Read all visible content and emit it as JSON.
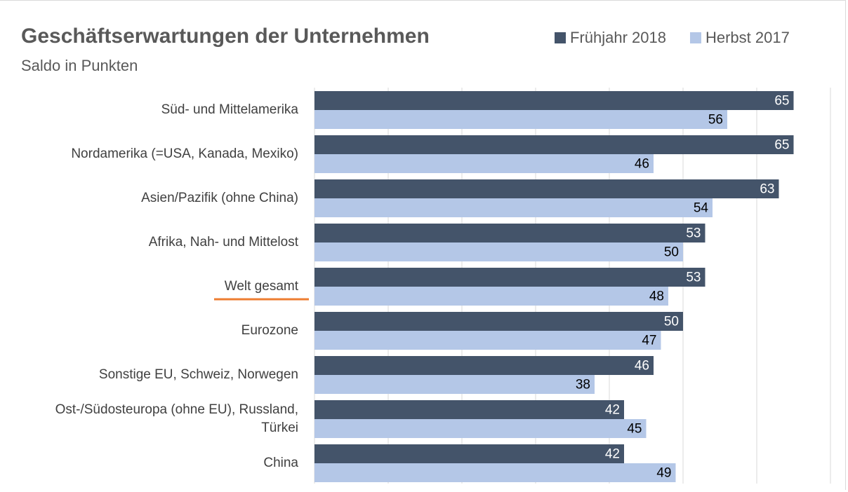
{
  "chart_data": {
    "type": "barh",
    "title": "Geschäftserwartungen der Unternehmen",
    "subtitle": "Saldo in Punkten",
    "categories": [
      "Süd- und Mittelamerika",
      "Nordamerika (=USA, Kanada, Mexiko)",
      "Asien/Pazifik (ohne China)",
      "Afrika, Nah- und Mittelost",
      "Welt gesamt",
      "Eurozone",
      "Sonstige EU, Schweiz, Norwegen",
      "Ost-/Südosteuropa (ohne EU), Russland, Türkei",
      "China"
    ],
    "series": [
      {
        "name": "Frühjahr 2018",
        "color": "#44546a",
        "label_color": "#ffffff",
        "values": [
          65,
          65,
          63,
          53,
          53,
          50,
          46,
          42,
          42
        ]
      },
      {
        "name": "Herbst 2017",
        "color": "#b4c7e7",
        "label_color": "#000000",
        "values": [
          56,
          46,
          54,
          50,
          48,
          47,
          38,
          45,
          49
        ]
      }
    ],
    "xlim": [
      0,
      70
    ],
    "xticks": [
      0,
      10,
      20,
      30,
      40,
      50,
      60,
      70
    ],
    "grid": true,
    "legend": "top-right"
  }
}
